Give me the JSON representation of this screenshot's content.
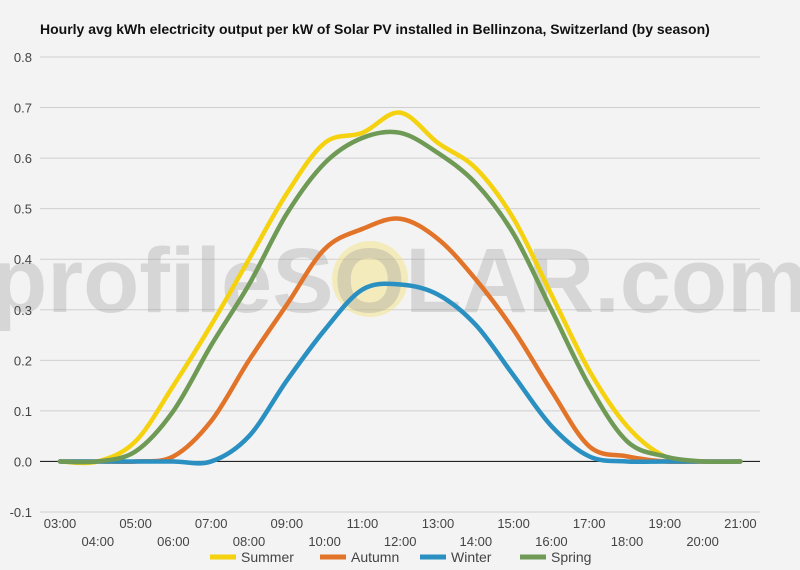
{
  "chart_data": {
    "type": "line",
    "title": "Hourly avg kWh electricity output per kW of Solar PV installed in Bellinzona, Switzerland (by season)",
    "xlabel": "",
    "ylabel": "",
    "x": [
      "03:00",
      "04:00",
      "05:00",
      "06:00",
      "07:00",
      "08:00",
      "09:00",
      "10:00",
      "11:00",
      "12:00",
      "13:00",
      "14:00",
      "15:00",
      "16:00",
      "17:00",
      "18:00",
      "19:00",
      "20:00",
      "21:00"
    ],
    "ylim": [
      -0.1,
      0.8
    ],
    "yticks": [
      "0.8",
      "0.7",
      "0.6",
      "0.5",
      "0.4",
      "0.3",
      "0.2",
      "0.1",
      "0.0",
      "-0.1"
    ],
    "grid": true,
    "legend_position": "bottom",
    "series": [
      {
        "name": "Summer",
        "color": "#f5d20f",
        "values": [
          0.0,
          0.0,
          0.04,
          0.15,
          0.27,
          0.4,
          0.53,
          0.63,
          0.65,
          0.69,
          0.63,
          0.58,
          0.48,
          0.33,
          0.18,
          0.07,
          0.01,
          0.0,
          0.0
        ]
      },
      {
        "name": "Autumn",
        "color": "#e2742a",
        "values": [
          0.0,
          0.0,
          0.0,
          0.01,
          0.08,
          0.2,
          0.31,
          0.42,
          0.46,
          0.48,
          0.44,
          0.36,
          0.26,
          0.14,
          0.03,
          0.01,
          0.0,
          0.0,
          0.0
        ]
      },
      {
        "name": "Winter",
        "color": "#2a8fc1",
        "values": [
          0.0,
          0.0,
          0.0,
          0.0,
          0.0,
          0.05,
          0.16,
          0.26,
          0.34,
          0.35,
          0.33,
          0.27,
          0.17,
          0.07,
          0.01,
          0.0,
          0.0,
          0.0,
          0.0
        ]
      },
      {
        "name": "Spring",
        "color": "#6f9a55",
        "values": [
          0.0,
          0.0,
          0.02,
          0.1,
          0.23,
          0.35,
          0.49,
          0.59,
          0.64,
          0.65,
          0.61,
          0.55,
          0.45,
          0.3,
          0.15,
          0.04,
          0.01,
          0.0,
          0.0
        ]
      }
    ]
  },
  "watermark": {
    "text": "profileSOLAR.com",
    "sun_color": "#f7e27a"
  }
}
